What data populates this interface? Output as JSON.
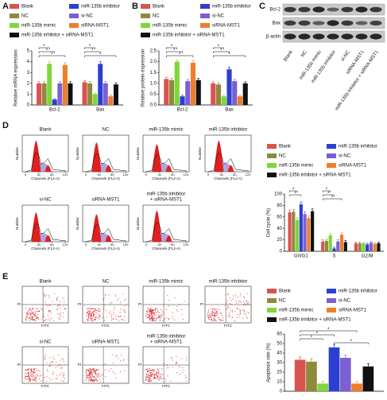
{
  "panel_labels": [
    "A",
    "B",
    "C",
    "D",
    "E"
  ],
  "chart_data": [
    {
      "type": "bar",
      "y_label": "Relative mRNA expression",
      "categories": [
        "Bcl-2",
        "Bax"
      ],
      "ylim": [
        0,
        5
      ],
      "yticks": [
        0,
        1,
        2,
        3,
        4,
        5
      ],
      "significance": [
        "*",
        "*",
        "*",
        "*",
        "*",
        "*"
      ],
      "series": [
        {
          "name": "Blank",
          "color": "#d9534f",
          "values": [
            2.0,
            2.1
          ],
          "errors": [
            0.15,
            0.15
          ]
        },
        {
          "name": "NC",
          "color": "#8e8a3d",
          "values": [
            2.0,
            2.0
          ],
          "errors": [
            0.15,
            0.15
          ]
        },
        {
          "name": "miR-135b mimic",
          "color": "#7fd63a",
          "values": [
            3.8,
            1.0
          ],
          "errors": [
            0.2,
            0.12
          ]
        },
        {
          "name": "miR-135b inhibitor",
          "color": "#2c3fd1",
          "values": [
            0.5,
            3.8
          ],
          "errors": [
            0.08,
            0.2
          ]
        },
        {
          "name": "si-NC",
          "color": "#7b5fd3",
          "values": [
            2.0,
            2.0
          ],
          "errors": [
            0.15,
            0.15
          ]
        },
        {
          "name": "siRNA-MST1",
          "color": "#ef7d2c",
          "values": [
            3.7,
            0.8
          ],
          "errors": [
            0.2,
            0.12
          ]
        },
        {
          "name": "miR-135b inhibitor + siRNA-MST1",
          "color": "#111111",
          "values": [
            2.0,
            1.9
          ],
          "errors": [
            0.15,
            0.15
          ]
        }
      ]
    },
    {
      "type": "bar",
      "y_label": "Relative protein expression",
      "categories": [
        "Bcl-2",
        "Bax"
      ],
      "ylim": [
        0,
        2.5
      ],
      "yticks": [
        {
          "value": 0,
          "label": "0.0"
        },
        0.5,
        {
          "value": 1,
          "label": "1.0"
        },
        1.5,
        {
          "value": 2,
          "label": "2.0"
        },
        2.5
      ],
      "significance": [
        "*",
        "*",
        "*",
        "*",
        "*",
        "*"
      ],
      "series": [
        {
          "name": "Blank",
          "color": "#d9534f",
          "values": [
            1.2,
            1.0
          ],
          "errors": [
            0.08,
            0.07
          ]
        },
        {
          "name": "NC",
          "color": "#8e8a3d",
          "values": [
            1.15,
            0.95
          ],
          "errors": [
            0.08,
            0.07
          ]
        },
        {
          "name": "miR-135b mimic",
          "color": "#7fd63a",
          "values": [
            2.0,
            0.4
          ],
          "errors": [
            0.08,
            0.05
          ]
        },
        {
          "name": "miR-135b inhibitor",
          "color": "#2c3fd1",
          "values": [
            0.4,
            1.65
          ],
          "errors": [
            0.05,
            0.1
          ]
        },
        {
          "name": "si-NC",
          "color": "#7b5fd3",
          "values": [
            1.1,
            1.1
          ],
          "errors": [
            0.08,
            0.08
          ]
        },
        {
          "name": "siRNA-MST1",
          "color": "#ef7d2c",
          "values": [
            1.95,
            0.4
          ],
          "errors": [
            0.1,
            0.05
          ]
        },
        {
          "name": "miR-135b inhibitor + siRNA-MST1",
          "color": "#111111",
          "values": [
            1.15,
            1.0
          ],
          "errors": [
            0.08,
            0.07
          ]
        }
      ]
    },
    {
      "type": "bar",
      "y_label": "Cell cycle (%)",
      "categories": [
        "G0/G1",
        "S",
        "G2/M"
      ],
      "ylim": [
        0,
        100
      ],
      "yticks": [
        0,
        20,
        40,
        60,
        80,
        100
      ],
      "significance": [
        "*",
        "*",
        "*",
        "*",
        "*"
      ],
      "series": [
        {
          "name": "Blank",
          "color": "#d9534f",
          "values": [
            68,
            17,
            14
          ],
          "errors": [
            4,
            3,
            2
          ]
        },
        {
          "name": "NC",
          "color": "#8e8a3d",
          "values": [
            69,
            18,
            14
          ],
          "errors": [
            4,
            3,
            2
          ]
        },
        {
          "name": "miR-135b mimic",
          "color": "#7fd63a",
          "values": [
            55,
            28,
            14
          ],
          "errors": [
            4,
            3,
            2
          ]
        },
        {
          "name": "miR-135b inhibitor",
          "color": "#2c3fd1",
          "values": [
            82,
            5,
            12
          ],
          "errors": [
            4,
            2,
            2
          ]
        },
        {
          "name": "si-NC",
          "color": "#7b5fd3",
          "values": [
            65,
            17,
            15
          ],
          "errors": [
            4,
            3,
            2
          ]
        },
        {
          "name": "siRNA-MST1",
          "color": "#ef7d2c",
          "values": [
            58,
            29,
            13
          ],
          "errors": [
            4,
            3,
            2
          ]
        },
        {
          "name": "miR-135b inhibitor + siRNA-MST1",
          "color": "#111111",
          "values": [
            70,
            16,
            14
          ],
          "errors": [
            4,
            3,
            2
          ]
        }
      ]
    },
    {
      "type": "bar",
      "y_label": "Apoptosis rate (%)",
      "categories": [
        null
      ],
      "ylim": [
        0,
        60
      ],
      "yticks": [
        0,
        10,
        20,
        30,
        40,
        50,
        60
      ],
      "significance": [
        "*",
        "*",
        "*",
        "*"
      ],
      "series": [
        {
          "name": "Blank",
          "color": "#d9534f",
          "values": [
            33
          ],
          "errors": [
            3
          ]
        },
        {
          "name": "NC",
          "color": "#8e8a3d",
          "values": [
            31
          ],
          "errors": [
            3
          ]
        },
        {
          "name": "miR-135b mimic",
          "color": "#7fd63a",
          "values": [
            8
          ],
          "errors": [
            2
          ]
        },
        {
          "name": "miR-135b inhibitor",
          "color": "#2c3fd1",
          "values": [
            46
          ],
          "errors": [
            3
          ]
        },
        {
          "name": "si-NC",
          "color": "#7b5fd3",
          "values": [
            35
          ],
          "errors": [
            3
          ]
        },
        {
          "name": "siRNA-MST1",
          "color": "#ef7d2c",
          "values": [
            8
          ],
          "errors": [
            2
          ]
        },
        {
          "name": "miR-135b inhibitor + siRNA-MST1",
          "color": "#111111",
          "values": [
            26
          ],
          "errors": [
            3
          ]
        }
      ]
    }
  ],
  "blot": {
    "rows": [
      "Bcl-2",
      "Bax",
      "β-actin"
    ],
    "lanes": [
      "Blank",
      "NC",
      "miR-135b mimic",
      "miR-135b inhibitor",
      "si-NC",
      "siRNA-MST1",
      "miR-135b inhibitor + siRNA-MST1"
    ]
  },
  "histograms": {
    "titles": [
      "Blank",
      "NC",
      "miR-135b mimic",
      "miR-135b inhibitor",
      "si-NC",
      "siRNA-MST1",
      [
        "miR-135b inhibitor",
        "+ siRNA-MST1"
      ]
    ],
    "x_label": "Channels (FL2-A)",
    "y_label": "Number",
    "xticks": [
      0,
      40,
      80,
      120
    ]
  },
  "scatter_plots": {
    "titles": [
      "Blank",
      "NC",
      "miR-135b mimic",
      "miR-135b inhibitor",
      "si-NC",
      "siRNA-MST1",
      [
        "miR-135b inhibitor",
        "+ siRNA-MST1"
      ]
    ],
    "x_label": "FITC",
    "y_label": "PI"
  }
}
